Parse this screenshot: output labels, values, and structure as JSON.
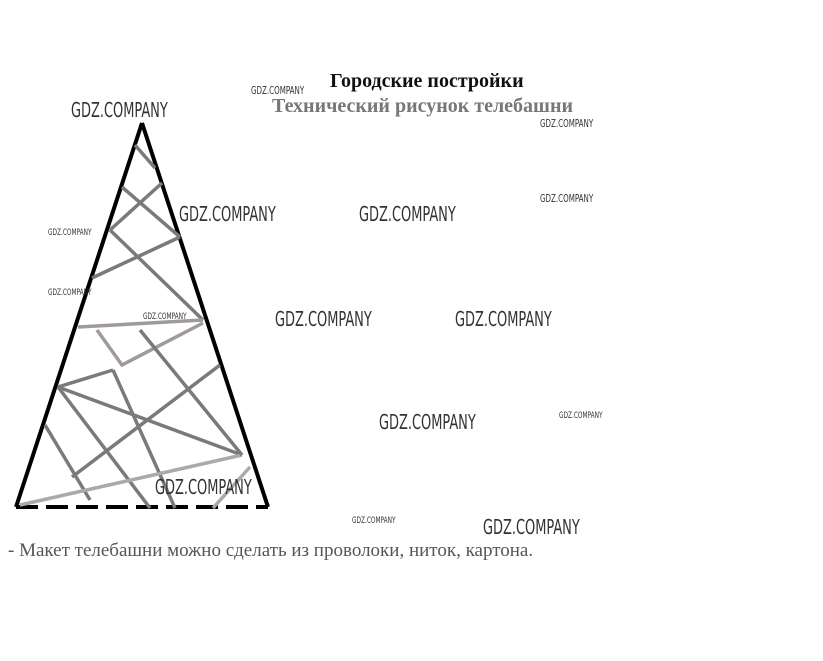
{
  "heading": {
    "title": "Городские постройки",
    "subtitle": "Технический рисунок телебашни"
  },
  "note": "- Макет телебашни можно сделать из проволоки, ниток, картона.",
  "watermark": "GDZ.COMPANY",
  "colors": {
    "outline": "#000000",
    "braces": "#7a7a7a",
    "text": "#111111"
  }
}
